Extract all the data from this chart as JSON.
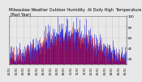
{
  "title": "Milwaukee Weather Outdoor Humidity  At Daily High  Temperature  (Past Year)",
  "title_fontsize": 3.5,
  "background_color": "#e8e8e8",
  "plot_bg_color": "#e8e8e8",
  "grid_color": "#888888",
  "num_points": 365,
  "seed": 42,
  "blue_color": "#0000dd",
  "red_color": "#dd0000",
  "ylim_min": 10,
  "ylim_max": 100,
  "y_ticks": [
    20,
    40,
    60,
    80,
    100
  ],
  "tick_fontsize": 3.0,
  "line_width": 0.4
}
